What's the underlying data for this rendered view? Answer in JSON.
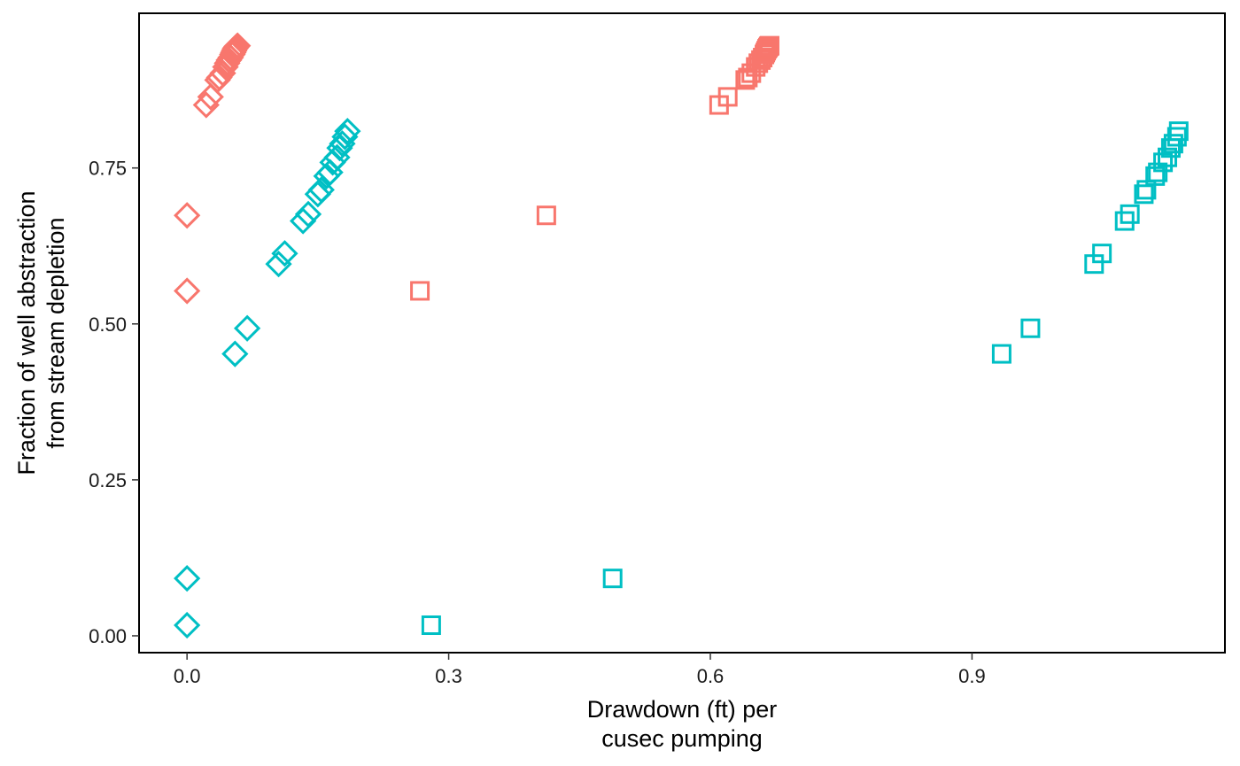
{
  "chart_data": {
    "type": "scatter",
    "xlabel": [
      "Drawdown (ft) per",
      "cusec pumping"
    ],
    "ylabel": [
      "Fraction of well abstraction",
      "from stream depletion"
    ],
    "xlim": [
      -0.055,
      1.19
    ],
    "ylim": [
      -0.027,
      0.998
    ],
    "x_ticks": [
      0.0,
      0.3,
      0.6,
      0.9
    ],
    "x_tick_labels": [
      "0.0",
      "0.3",
      "0.6",
      "0.9"
    ],
    "y_ticks": [
      0.0,
      0.25,
      0.5,
      0.75
    ],
    "y_tick_labels": [
      "0.00",
      "0.25",
      "0.50",
      "0.75"
    ],
    "grid": false,
    "legend": "none",
    "colors": {
      "red": "#F8766D",
      "teal": "#00BFC4"
    },
    "series": [
      {
        "marker": "diamond",
        "color": "red",
        "points": [
          [
            0.0,
            0.674
          ],
          [
            0.0,
            0.553
          ],
          [
            0.022,
            0.851
          ],
          [
            0.027,
            0.864
          ],
          [
            0.035,
            0.891
          ],
          [
            0.037,
            0.895
          ],
          [
            0.041,
            0.902
          ],
          [
            0.044,
            0.912
          ],
          [
            0.046,
            0.918
          ],
          [
            0.048,
            0.923
          ],
          [
            0.05,
            0.927
          ],
          [
            0.052,
            0.932
          ],
          [
            0.053,
            0.935
          ],
          [
            0.054,
            0.938
          ],
          [
            0.055,
            0.941
          ],
          [
            0.056,
            0.943
          ],
          [
            0.057,
            0.945
          ],
          [
            0.058,
            0.946
          ]
        ]
      },
      {
        "marker": "square",
        "color": "red",
        "points": [
          [
            0.412,
            0.674
          ],
          [
            0.267,
            0.553
          ],
          [
            0.61,
            0.851
          ],
          [
            0.62,
            0.864
          ],
          [
            0.64,
            0.891
          ],
          [
            0.643,
            0.895
          ],
          [
            0.647,
            0.902
          ],
          [
            0.652,
            0.912
          ],
          [
            0.655,
            0.918
          ],
          [
            0.658,
            0.923
          ],
          [
            0.66,
            0.927
          ],
          [
            0.662,
            0.932
          ],
          [
            0.663,
            0.935
          ],
          [
            0.664,
            0.938
          ],
          [
            0.665,
            0.941
          ],
          [
            0.666,
            0.943
          ],
          [
            0.667,
            0.945
          ],
          [
            0.668,
            0.946
          ]
        ]
      },
      {
        "marker": "diamond",
        "color": "teal",
        "points": [
          [
            0.0,
            0.017
          ],
          [
            0.0,
            0.092
          ],
          [
            0.055,
            0.452
          ],
          [
            0.069,
            0.493
          ],
          [
            0.105,
            0.596
          ],
          [
            0.112,
            0.613
          ],
          [
            0.133,
            0.665
          ],
          [
            0.139,
            0.676
          ],
          [
            0.15,
            0.708
          ],
          [
            0.154,
            0.715
          ],
          [
            0.16,
            0.737
          ],
          [
            0.164,
            0.743
          ],
          [
            0.167,
            0.759
          ],
          [
            0.172,
            0.767
          ],
          [
            0.175,
            0.782
          ],
          [
            0.178,
            0.789
          ],
          [
            0.181,
            0.8
          ],
          [
            0.184,
            0.809
          ]
        ]
      },
      {
        "marker": "square",
        "color": "teal",
        "points": [
          [
            0.28,
            0.017
          ],
          [
            0.488,
            0.092
          ],
          [
            0.934,
            0.452
          ],
          [
            0.967,
            0.493
          ],
          [
            1.04,
            0.596
          ],
          [
            1.049,
            0.613
          ],
          [
            1.075,
            0.665
          ],
          [
            1.081,
            0.676
          ],
          [
            1.097,
            0.708
          ],
          [
            1.1,
            0.715
          ],
          [
            1.11,
            0.737
          ],
          [
            1.113,
            0.743
          ],
          [
            1.119,
            0.759
          ],
          [
            1.124,
            0.767
          ],
          [
            1.128,
            0.782
          ],
          [
            1.131,
            0.789
          ],
          [
            1.135,
            0.8
          ],
          [
            1.137,
            0.809
          ]
        ]
      }
    ]
  }
}
